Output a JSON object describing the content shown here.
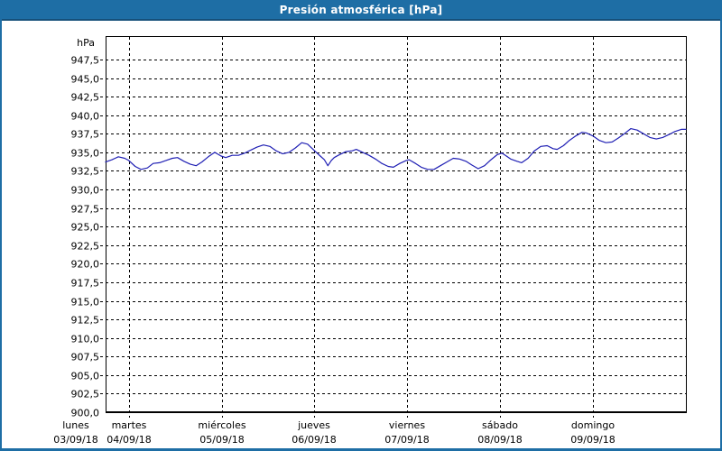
{
  "window": {
    "title": "Presión atmosférica [hPa]"
  },
  "colors": {
    "titlebar_bg": "#1E6EA5",
    "titlebar_text": "#FFFFFF",
    "frame_border": "#1E6EA5",
    "plot_background": "#FFFFFF",
    "grid": "#000000",
    "series_line": "#2020B4"
  },
  "chart_data": {
    "type": "line",
    "title": "Presión atmosférica [hPa]",
    "y_unit_label": "hPa",
    "grid": true,
    "legend": "none",
    "y_axis": {
      "min": 900.0,
      "max": 947.5,
      "tick_step": 2.5,
      "tick_labels": [
        "947,5",
        "945,0",
        "942,5",
        "940,0",
        "937,5",
        "935,0",
        "932,5",
        "930,0",
        "927,5",
        "925,0",
        "922,5",
        "920,0",
        "917,5",
        "915,0",
        "912,5",
        "910,0",
        "907,5",
        "905,0",
        "902,5",
        "900,0"
      ]
    },
    "x_axis": {
      "span_days": 6.25,
      "days": [
        {
          "weekday": "lunes",
          "date": "03/09/18"
        },
        {
          "weekday": "martes",
          "date": "04/09/18"
        },
        {
          "weekday": "miércoles",
          "date": "05/09/18"
        },
        {
          "weekday": "jueves",
          "date": "06/09/18"
        },
        {
          "weekday": "viernes",
          "date": "07/09/18"
        },
        {
          "weekday": "sábado",
          "date": "08/09/18"
        },
        {
          "weekday": "domingo",
          "date": "09/09/18"
        }
      ]
    },
    "series": [
      {
        "name": "Presión atmosférica",
        "unit": "hPa",
        "color": "#2020B4",
        "points": [
          [
            0.0,
            933.7
          ],
          [
            0.011,
            934.0
          ],
          [
            0.022,
            934.4
          ],
          [
            0.033,
            934.2
          ],
          [
            0.04,
            933.9
          ],
          [
            0.051,
            933.1
          ],
          [
            0.061,
            932.7
          ],
          [
            0.072,
            932.9
          ],
          [
            0.082,
            933.5
          ],
          [
            0.093,
            933.6
          ],
          [
            0.104,
            933.9
          ],
          [
            0.115,
            934.2
          ],
          [
            0.124,
            934.3
          ],
          [
            0.135,
            933.8
          ],
          [
            0.146,
            933.4
          ],
          [
            0.156,
            933.2
          ],
          [
            0.166,
            933.7
          ],
          [
            0.177,
            934.4
          ],
          [
            0.188,
            935.0
          ],
          [
            0.199,
            934.5
          ],
          [
            0.207,
            934.3
          ],
          [
            0.218,
            934.6
          ],
          [
            0.229,
            934.6
          ],
          [
            0.24,
            934.9
          ],
          [
            0.25,
            935.3
          ],
          [
            0.261,
            935.7
          ],
          [
            0.272,
            936.0
          ],
          [
            0.283,
            935.8
          ],
          [
            0.294,
            935.2
          ],
          [
            0.305,
            934.8
          ],
          [
            0.316,
            935.0
          ],
          [
            0.327,
            935.6
          ],
          [
            0.338,
            936.3
          ],
          [
            0.348,
            936.1
          ],
          [
            0.359,
            935.3
          ],
          [
            0.37,
            934.5
          ],
          [
            0.377,
            934.0
          ],
          [
            0.383,
            933.2
          ],
          [
            0.389,
            933.9
          ],
          [
            0.394,
            934.3
          ],
          [
            0.401,
            934.6
          ],
          [
            0.414,
            935.1
          ],
          [
            0.425,
            935.2
          ],
          [
            0.432,
            935.4
          ],
          [
            0.443,
            935.0
          ],
          [
            0.454,
            934.6
          ],
          [
            0.465,
            934.1
          ],
          [
            0.476,
            933.5
          ],
          [
            0.487,
            933.1
          ],
          [
            0.496,
            933.0
          ],
          [
            0.507,
            933.5
          ],
          [
            0.518,
            933.9
          ],
          [
            0.523,
            934.0
          ],
          [
            0.534,
            933.5
          ],
          [
            0.544,
            933.0
          ],
          [
            0.555,
            932.7
          ],
          [
            0.566,
            932.7
          ],
          [
            0.577,
            933.2
          ],
          [
            0.588,
            933.7
          ],
          [
            0.599,
            934.2
          ],
          [
            0.61,
            934.1
          ],
          [
            0.621,
            933.8
          ],
          [
            0.631,
            933.3
          ],
          [
            0.642,
            932.8
          ],
          [
            0.653,
            933.2
          ],
          [
            0.664,
            934.0
          ],
          [
            0.675,
            934.7
          ],
          [
            0.683,
            934.9
          ],
          [
            0.689,
            934.6
          ],
          [
            0.698,
            934.1
          ],
          [
            0.709,
            933.8
          ],
          [
            0.717,
            933.6
          ],
          [
            0.728,
            934.2
          ],
          [
            0.739,
            935.2
          ],
          [
            0.75,
            935.8
          ],
          [
            0.761,
            935.9
          ],
          [
            0.771,
            935.5
          ],
          [
            0.778,
            935.4
          ],
          [
            0.789,
            935.9
          ],
          [
            0.799,
            936.6
          ],
          [
            0.81,
            937.2
          ],
          [
            0.821,
            937.7
          ],
          [
            0.829,
            937.6
          ],
          [
            0.84,
            937.2
          ],
          [
            0.851,
            936.6
          ],
          [
            0.862,
            936.3
          ],
          [
            0.873,
            936.4
          ],
          [
            0.883,
            936.9
          ],
          [
            0.894,
            937.5
          ],
          [
            0.905,
            938.2
          ],
          [
            0.916,
            938.0
          ],
          [
            0.927,
            937.5
          ],
          [
            0.938,
            937.0
          ],
          [
            0.949,
            936.8
          ],
          [
            0.96,
            937.0
          ],
          [
            0.971,
            937.4
          ],
          [
            0.981,
            937.8
          ],
          [
            0.992,
            938.1
          ],
          [
            1.0,
            938.1
          ]
        ]
      }
    ]
  }
}
